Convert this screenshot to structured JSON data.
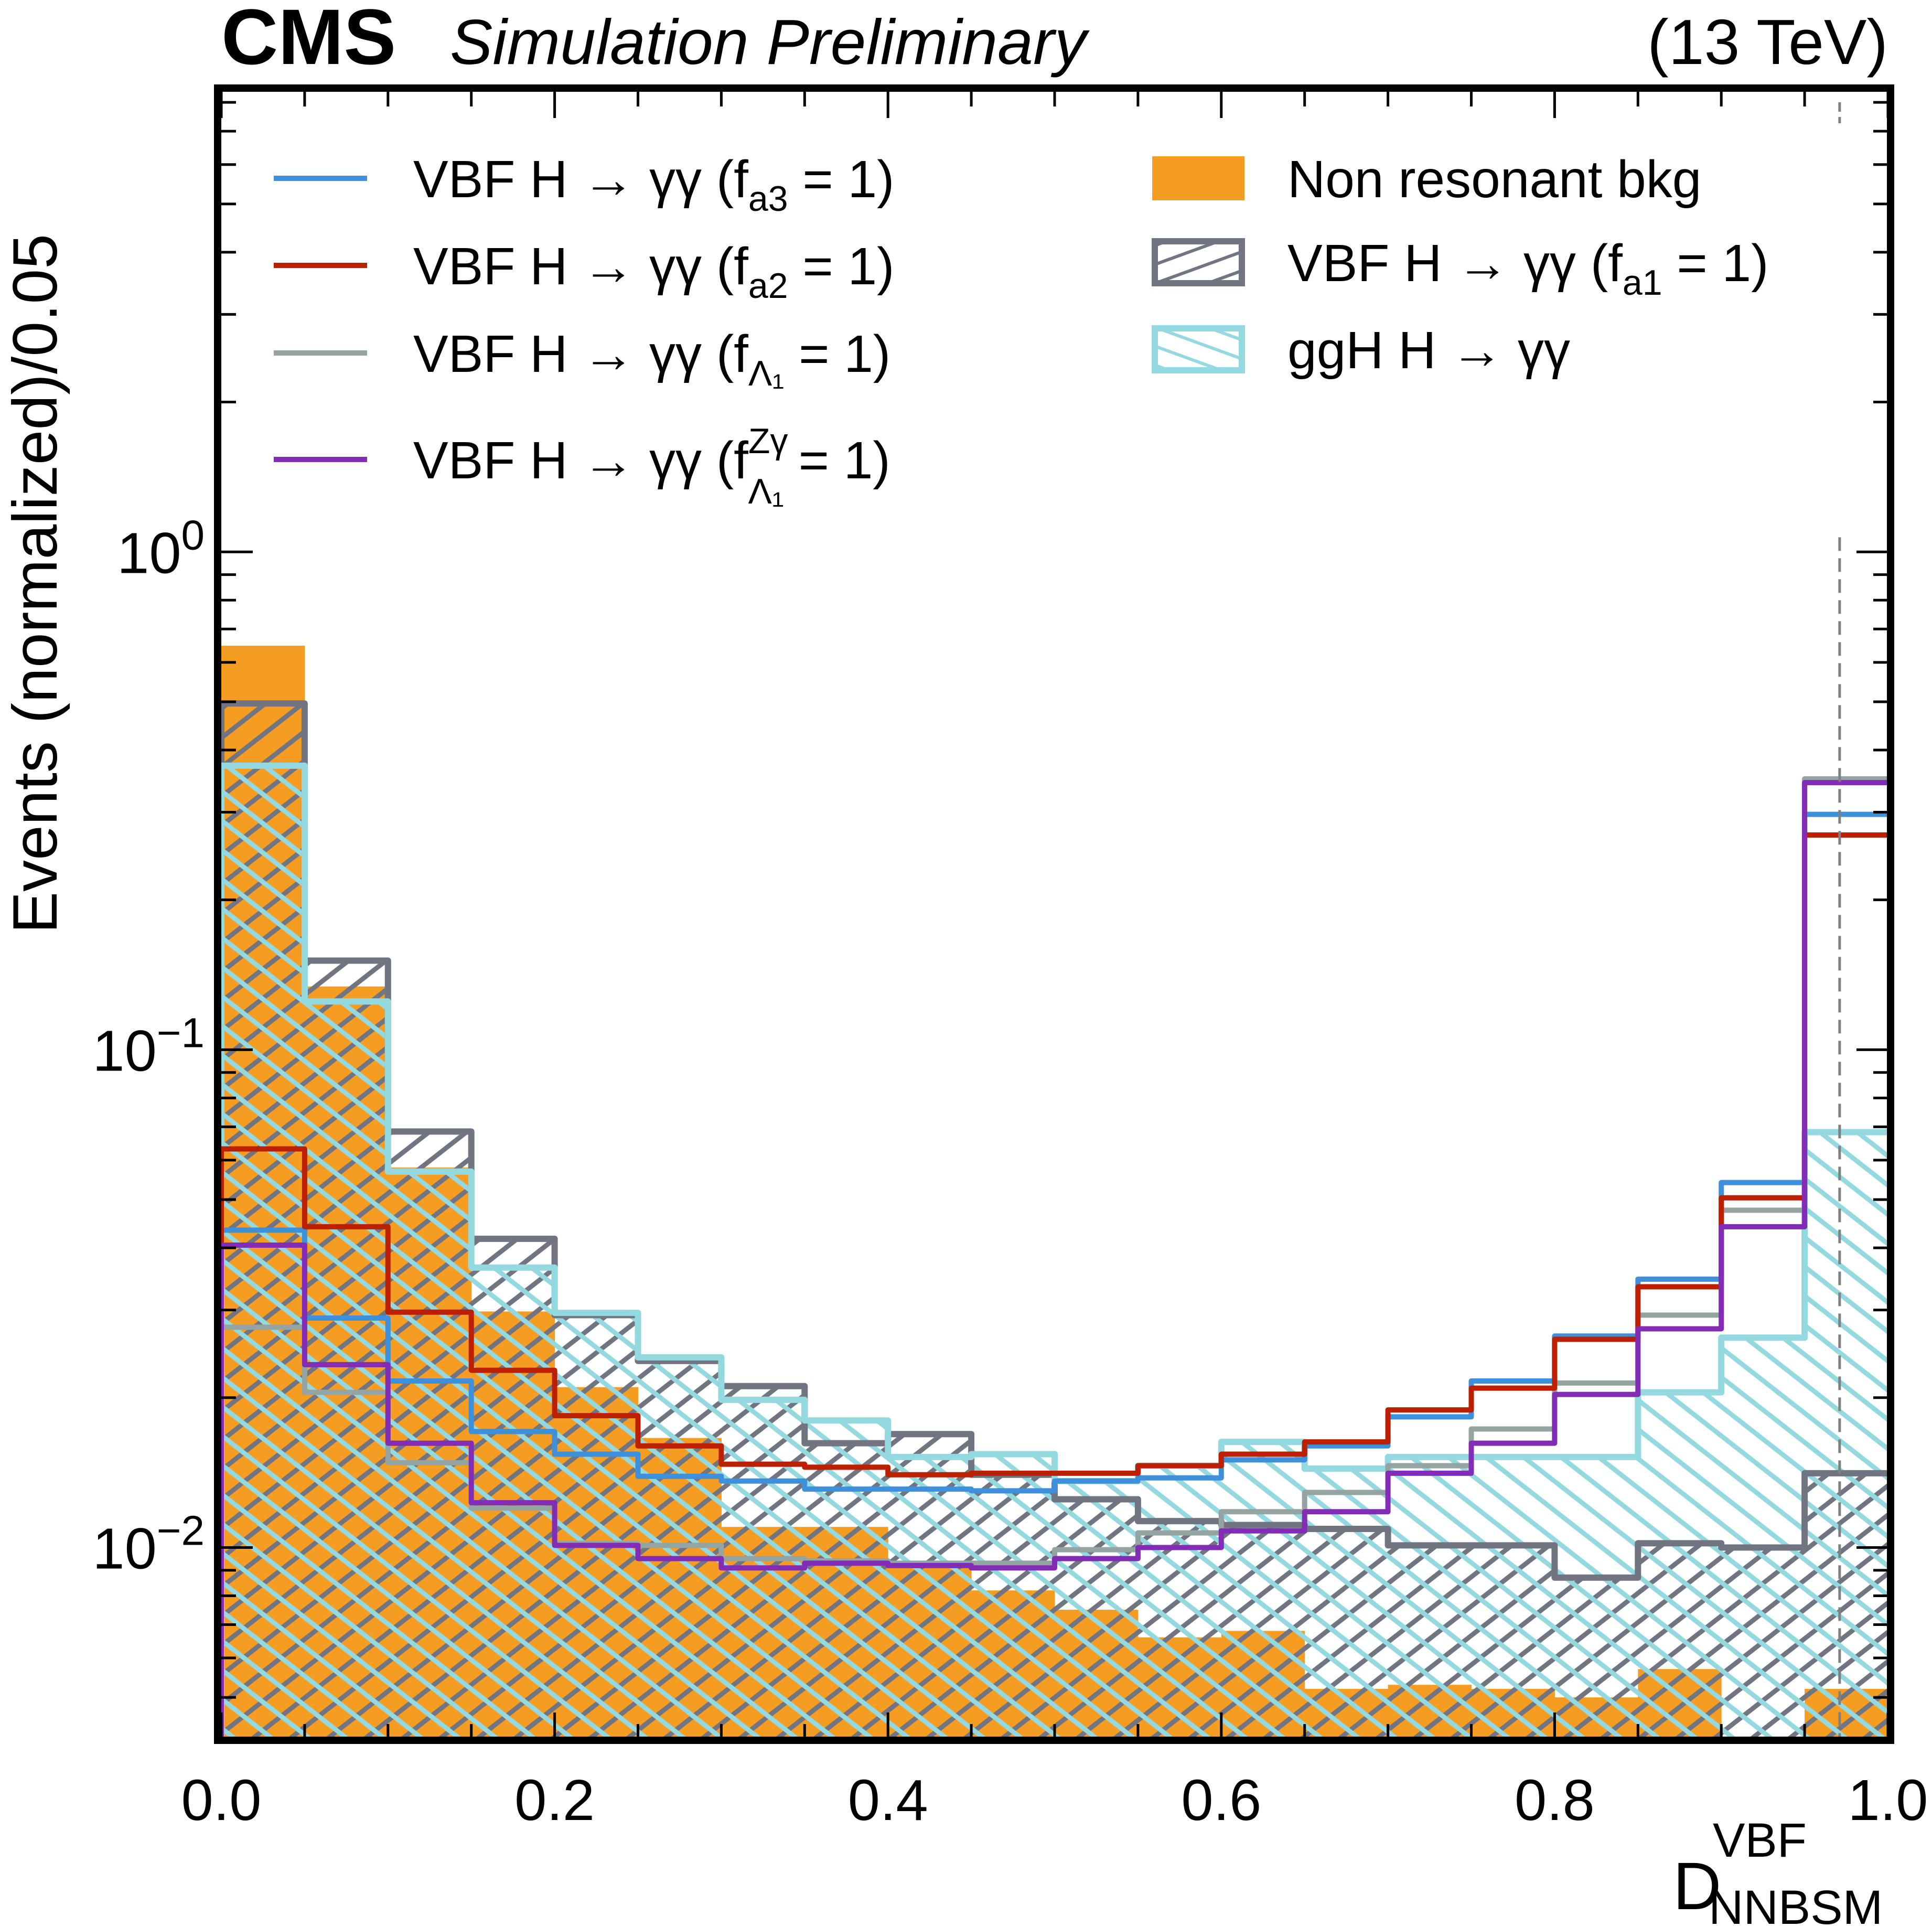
{
  "chart_data": {
    "type": "bar",
    "histogram_style": "step",
    "title": {
      "experiment": "CMS",
      "status": "Simulation Preliminary",
      "energy": "(13 TeV)"
    },
    "xlabel": "D",
    "xlabel_sup": "VBF",
    "xlabel_sub": "NNBSM",
    "ylabel": "Events (normalized)/0.05",
    "xlim": [
      0.0,
      1.0
    ],
    "ylim": [
      0.00413,
      8.4
    ],
    "yscale": "log",
    "grid": false,
    "x_ticks": [
      "0.0",
      "0.2",
      "0.4",
      "0.6",
      "0.8",
      "1.0"
    ],
    "x_tick_values": [
      0.0,
      0.2,
      0.4,
      0.6,
      0.8,
      1.0
    ],
    "y_ticks": [
      {
        "value": 1,
        "base": "10",
        "exp": "0"
      },
      {
        "value": 0.1,
        "base": "10",
        "exp": "−1"
      },
      {
        "value": 0.01,
        "base": "10",
        "exp": "−2"
      }
    ],
    "bin_edges": [
      0.0,
      0.05,
      0.1,
      0.15,
      0.2,
      0.25,
      0.3,
      0.35,
      0.4,
      0.45,
      0.5,
      0.55,
      0.6,
      0.65,
      0.7,
      0.75,
      0.8,
      0.85,
      0.9,
      0.95,
      1.0
    ],
    "annotations": [
      {
        "type": "vline",
        "x": 0.971,
        "style": "dashed",
        "color": "#808080",
        "y_top": 1.07
      }
    ],
    "legend_placement": "top",
    "series": [
      {
        "name": "Non resonant bkg",
        "key": "bkg",
        "kind": "filled",
        "color": "#f59c23",
        "values": [
          0.648,
          0.134,
          0.058,
          0.0298,
          0.021,
          0.0166,
          0.011,
          0.011,
          0.0093,
          0.0082,
          0.0075,
          0.0066,
          0.0068,
          0.0052,
          0.0053,
          0.0052,
          0.005,
          0.0057,
          0.0,
          0.0052
        ]
      },
      {
        "name": "VBF H → γγ  (f_a1 = 1)",
        "key": "vbf_fa1",
        "kind": "hatched",
        "hatch": "\\\\",
        "color": "#717581",
        "values": [
          0.496,
          0.151,
          0.0685,
          0.0417,
          0.0293,
          0.0237,
          0.0211,
          0.0162,
          0.0169,
          0.014,
          0.0125,
          0.0113,
          0.0111,
          0.0109,
          0.0101,
          0.0101,
          0.0087,
          0.0102,
          0.01,
          0.0141
        ]
      },
      {
        "name": "ggH H → γγ",
        "key": "ggh",
        "kind": "hatched",
        "hatch": "//",
        "color": "#94d9df",
        "values": [
          0.372,
          0.125,
          0.0569,
          0.0365,
          0.0296,
          0.0241,
          0.0198,
          0.018,
          0.0152,
          0.0154,
          0.0136,
          0.0146,
          0.0163,
          0.0144,
          0.0152,
          0.0152,
          0.0152,
          0.0205,
          0.0264,
          0.0683
        ]
      },
      {
        "name": "VBF H → γγ (f_a3 = 1)",
        "key": "fa3",
        "kind": "line",
        "color": "#3f90da",
        "values": [
          0.0434,
          0.0289,
          0.0216,
          0.0171,
          0.0154,
          0.0139,
          0.0136,
          0.0131,
          0.0131,
          0.013,
          0.0136,
          0.0138,
          0.015,
          0.016,
          0.0183,
          0.0216,
          0.0266,
          0.0346,
          0.0541,
          0.297
        ]
      },
      {
        "name": "VBF H → γγ (f_a2 = 1)",
        "key": "fa2",
        "kind": "line",
        "color": "#bd1f01",
        "values": [
          0.0632,
          0.0441,
          0.0297,
          0.0227,
          0.0184,
          0.016,
          0.0147,
          0.0145,
          0.014,
          0.0141,
          0.0141,
          0.0146,
          0.0154,
          0.0163,
          0.0189,
          0.0209,
          0.0262,
          0.0334,
          0.0504,
          0.27
        ]
      },
      {
        "name": "VBF H → γγ (f_Λ1 = 1)",
        "key": "fl1",
        "kind": "line",
        "color": "#94a4a2",
        "values": [
          0.0277,
          0.0205,
          0.0148,
          0.012,
          0.0102,
          0.0101,
          0.0095,
          0.0094,
          0.0093,
          0.0093,
          0.0099,
          0.0107,
          0.0118,
          0.0129,
          0.0146,
          0.0173,
          0.0214,
          0.0293,
          0.0476,
          0.35
        ]
      },
      {
        "name": "VBF H → γγ (f_Λ1^Zγ = 1)",
        "key": "fl1zg",
        "kind": "line",
        "color": "#832db6",
        "values": [
          0.0405,
          0.0233,
          0.0162,
          0.0123,
          0.0101,
          0.0095,
          0.0091,
          0.0093,
          0.0092,
          0.0091,
          0.0095,
          0.01,
          0.0108,
          0.0118,
          0.0141,
          0.0162,
          0.0203,
          0.0275,
          0.0441,
          0.344
        ]
      }
    ],
    "legend": {
      "left": [
        {
          "key": "fa3",
          "prefix": "VBF H → γγ (f",
          "sub": "a3",
          "sup": "",
          "suffix": " = 1)"
        },
        {
          "key": "fa2",
          "prefix": "VBF H → γγ (f",
          "sub": "a2",
          "sup": "",
          "suffix": " = 1)"
        },
        {
          "key": "fl1",
          "prefix": "VBF H → γγ (f",
          "sub": "Λ₁",
          "sup": "",
          "suffix": " = 1)"
        },
        {
          "key": "fl1zg",
          "prefix": "VBF H → γγ (f",
          "sub": "Λ₁",
          "sup": "Zγ",
          "suffix": " = 1)"
        }
      ],
      "right": [
        {
          "key": "bkg",
          "prefix": "Non resonant bkg",
          "sub": "",
          "sup": "",
          "suffix": ""
        },
        {
          "key": "vbf_fa1",
          "prefix": "VBF H → γγ  (f",
          "sub": "a1",
          "sup": "",
          "suffix": " = 1)"
        },
        {
          "key": "ggh",
          "prefix": "ggH H → γγ",
          "sub": "",
          "sup": "",
          "suffix": ""
        }
      ]
    }
  }
}
